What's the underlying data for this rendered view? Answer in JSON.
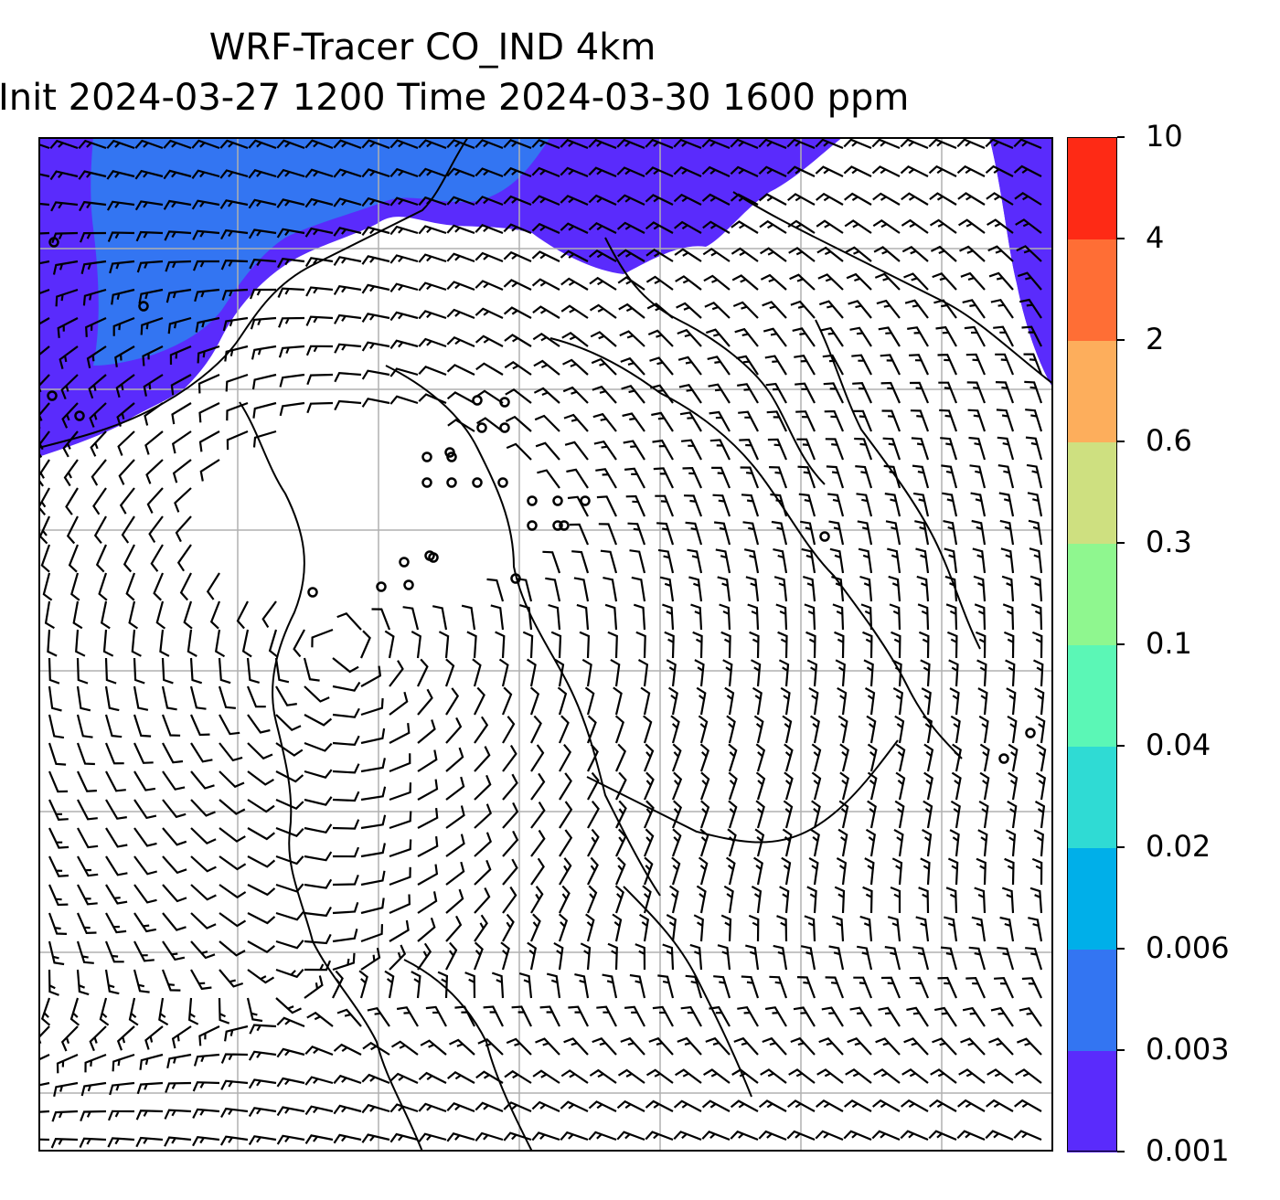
{
  "title": {
    "line1": "WRF-Tracer CO_IND 4km",
    "line2": "Init 2024-03-27 1200 Time 2024-03-30 1600 ppm"
  },
  "map": {
    "description_kind": "wind-barbs-over-tracer-concentration",
    "grid": "on",
    "grid_color": "#b0b0b0",
    "coastline_color": "#000000",
    "tracer_field_visible_levels": [
      "0.001-0.003",
      "0.003-0.006"
    ],
    "calm_region": "center-left, with circles marking calm winds",
    "circulation": "anticyclonic swirl centred mid-left"
  },
  "colorbar": {
    "levels": [
      "0.001",
      "0.003",
      "0.006",
      "0.02",
      "0.04",
      "0.1",
      "0.3",
      "0.6",
      "2",
      "4",
      "10"
    ],
    "colors": [
      "#5a2bfc",
      "#3375f2",
      "#00afe9",
      "#2fdbd4",
      "#5bf7b6",
      "#8ff78f",
      "#cee080",
      "#fdae5c",
      "#ff6e35",
      "#fe2a15"
    ]
  }
}
